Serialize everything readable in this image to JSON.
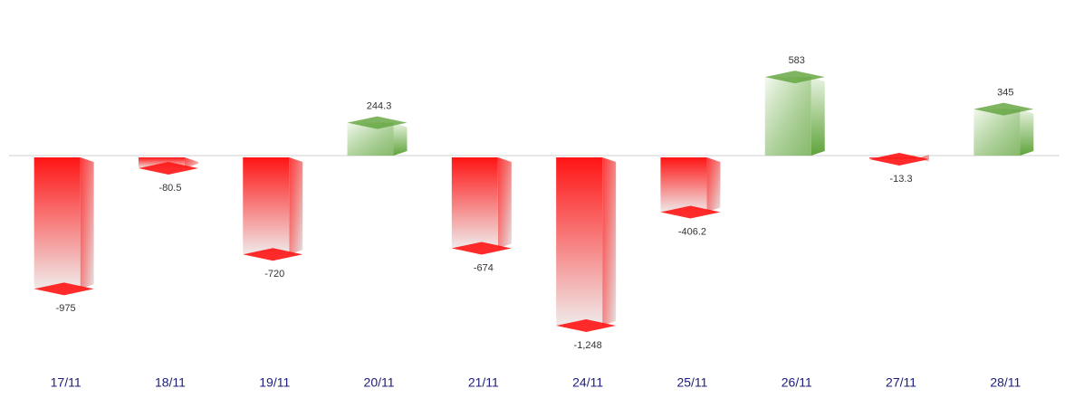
{
  "chart_data": {
    "type": "bar",
    "categories": [
      "17/11",
      "18/11",
      "19/11",
      "20/11",
      "21/11",
      "24/11",
      "25/11",
      "26/11",
      "27/11",
      "28/11"
    ],
    "values": [
      -975,
      -80.5,
      -720,
      244.3,
      -674,
      -1248,
      -406.2,
      583,
      -13.3,
      345
    ],
    "value_labels": [
      "-975",
      "-80.5",
      "-720",
      "244.3",
      "-674",
      "-1,248",
      "-406.2",
      "583",
      "-13.3",
      "345"
    ],
    "colors": {
      "negative": "#ff1414",
      "positive": "#5fa33a"
    }
  }
}
